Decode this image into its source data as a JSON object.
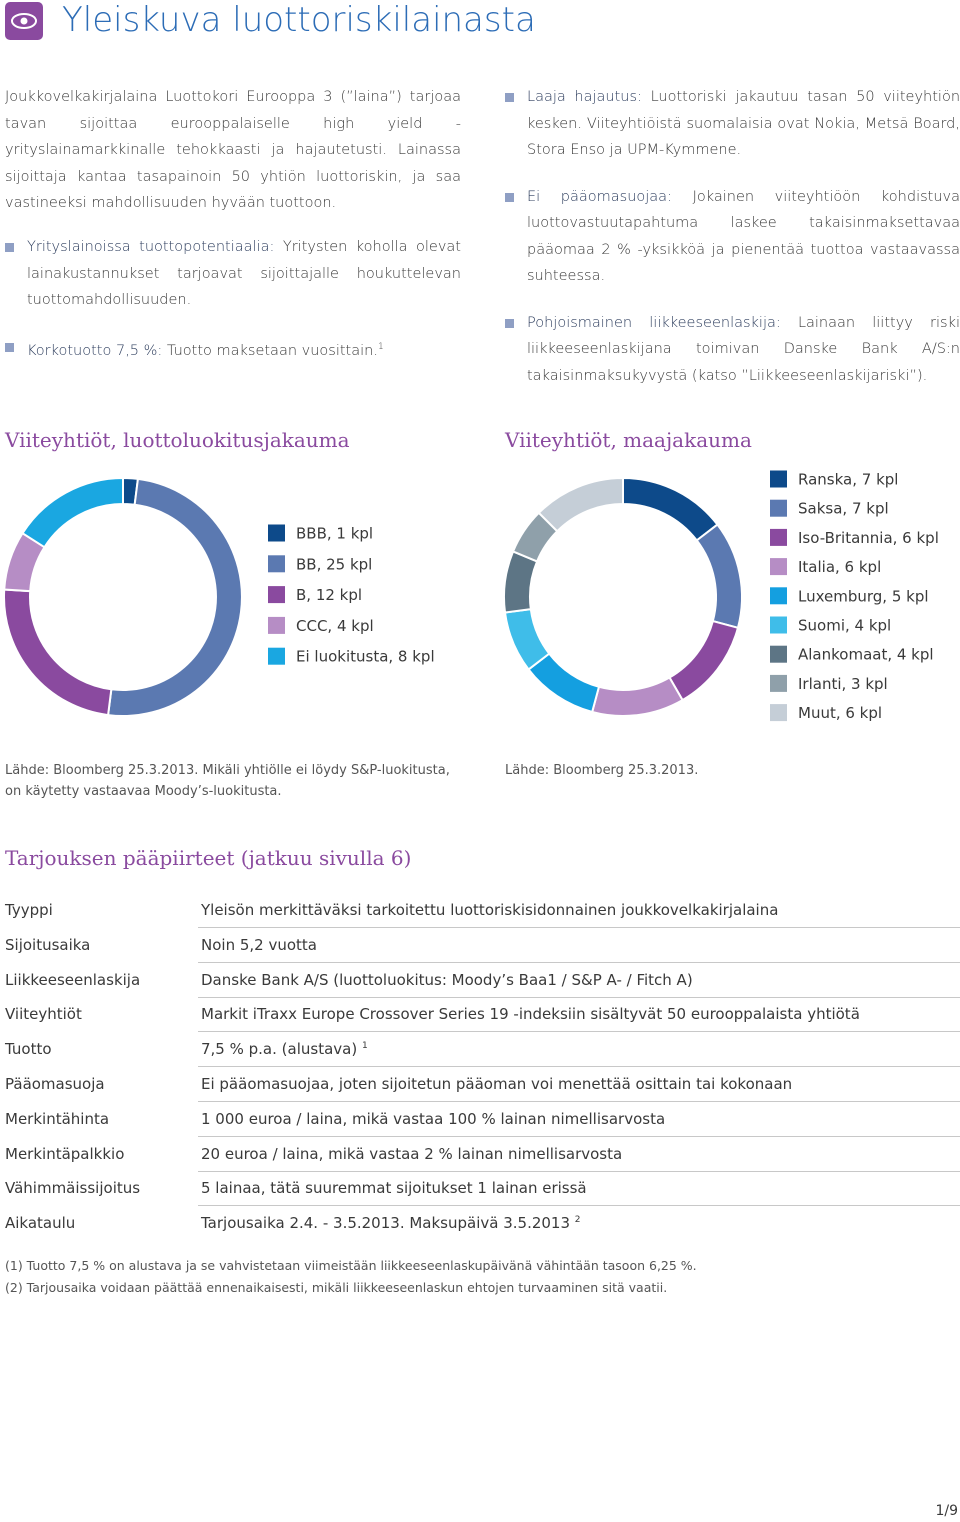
{
  "header": {
    "title": "Yleiskuva luottoriskilainasta"
  },
  "intro": "Joukkovelkakirjalaina Luottokori Eurooppa 3 (”laina”) tarjoaa tavan sijoittaa eurooppalaiselle high yield -yrityslainamarkkinalle tehokkaasti ja hajautetusti. Lainassa sijoittaja kantaa tasapainoin 50 yhtiön luottoriskin, ja saa vastineeksi mahdollisuuden hyvään tuottoon.",
  "bullets_left": [
    {
      "lead": "Yrityslainoissa tuottopotentiaalia:",
      "text": "Yritysten koholla olevat lainakustannukset tarjoavat sijoittajalle houkuttelevan tuottomahdollisuuden."
    },
    {
      "lead": "Korkotuotto 7,5 %:",
      "text": "Tuotto maksetaan vuosittain.",
      "note": "1"
    }
  ],
  "bullets_right": [
    {
      "lead": "Laaja hajautus:",
      "text": "Luottoriski jakautuu tasan 50 viiteyhtiön kesken. Viiteyhtiöistä suomalaisia ovat Nokia, Metsä Board, Stora Enso ja UPM-Kymmene."
    },
    {
      "lead": "Ei pääomasuojaa:",
      "text": "Jokainen viiteyhtiöön kohdistuva luottovastuutapahtuma laskee takaisinmaksettavaa pääomaa 2 % -yksikköä ja pienentää tuottoa vastaavassa suhteessa."
    },
    {
      "lead": "Pohjoismainen liikkeeseenlaskija:",
      "text": "Lainaan liittyy riski liikkeeseenlaskijana toimivan Danske Bank A/S:n takaisinmaksukyvystä (katso ”Liikkeeseenlaskijariski”)."
    }
  ],
  "chart_data": [
    {
      "type": "pie",
      "title": "Viiteyhtiöt, luottoluokitusjakauma",
      "categories": [
        "BBB, 1 kpl",
        "BB, 25 kpl",
        "B, 12 kpl",
        "CCC, 4 kpl",
        "Ei luokitusta, 8 kpl"
      ],
      "values": [
        1,
        25,
        12,
        4,
        8
      ],
      "colors": [
        "#0d4a8a",
        "#5b79b1",
        "#8a4a9f",
        "#b68dc5",
        "#1aa7e1"
      ],
      "source": "Lähde: Bloomberg 25.3.2013. Mikäli yhtiölle ei löydy S&P-luokitusta, on käytetty vastaavaa Moody’s-luokitusta."
    },
    {
      "type": "pie",
      "title": "Viiteyhtiöt, maajakauma",
      "categories": [
        "Ranska, 7 kpl",
        "Saksa, 7 kpl",
        "Iso-Britannia, 6 kpl",
        "Italia, 6 kpl",
        "Luxemburg, 5 kpl",
        "Suomi, 4 kpl",
        "Alankomaat, 4 kpl",
        "Irlanti, 3 kpl",
        "Muut, 6 kpl"
      ],
      "values": [
        7,
        7,
        6,
        6,
        5,
        4,
        4,
        3,
        6
      ],
      "colors": [
        "#0d4a8a",
        "#5b79b1",
        "#8a4a9f",
        "#b68dc5",
        "#149fe0",
        "#3fbde9",
        "#5d7585",
        "#8fa0aa",
        "#c5ced7"
      ],
      "source": "Lähde: Bloomberg 25.3.2013."
    }
  ],
  "table": {
    "title": "Tarjouksen pääpiirteet (jatkuu sivulla 6)",
    "rows": [
      {
        "label": "Tyyppi",
        "value": "Yleisön merkittäväksi tarkoitettu luottoriskisidonnainen joukkovelkakirjalaina"
      },
      {
        "label": "Sijoitusaika",
        "value": "Noin 5,2 vuotta"
      },
      {
        "label": "Liikkeeseenlaskija",
        "value": "Danske Bank A/S (luottoluokitus: Moody’s Baa1 / S&P A- / Fitch A)"
      },
      {
        "label": "Viiteyhtiöt",
        "value": "Markit iTraxx Europe Crossover Series 19 -indeksiin sisältyvät 50 eurooppalaista yhtiötä"
      },
      {
        "label": "Tuotto",
        "value": "7,5 % p.a. (alustava)",
        "note": "1"
      },
      {
        "label": "Pääomasuoja",
        "value": "Ei pääomasuojaa, joten sijoitetun pääoman voi menettää osittain tai kokonaan"
      },
      {
        "label": "Merkintähinta",
        "value": "1 000 euroa / laina, mikä vastaa 100 % lainan nimellisarvosta"
      },
      {
        "label": "Merkintäpalkkio",
        "value": "20 euroa / laina, mikä vastaa 2 % lainan nimellisarvosta"
      },
      {
        "label": "Vähimmäissijoitus",
        "value": "5 lainaa, tätä suuremmat sijoitukset 1 lainan erissä"
      },
      {
        "label": "Aikataulu",
        "value": "Tarjousaika 2.4. - 3.5.2013. Maksupäivä 3.5.2013",
        "note": "2"
      }
    ]
  },
  "footnotes": [
    "(1) Tuotto 7,5 % on alustava ja se vahvistetaan viimeistään liikkeeseenlaskupäivänä vähintään tasoon 6,25 %.",
    "(2) Tarjousaika voidaan päättää ennenaikaisesti, mikäli liikkeeseenlaskun ehtojen turvaaminen sitä vaatii."
  ],
  "page": "1/9"
}
